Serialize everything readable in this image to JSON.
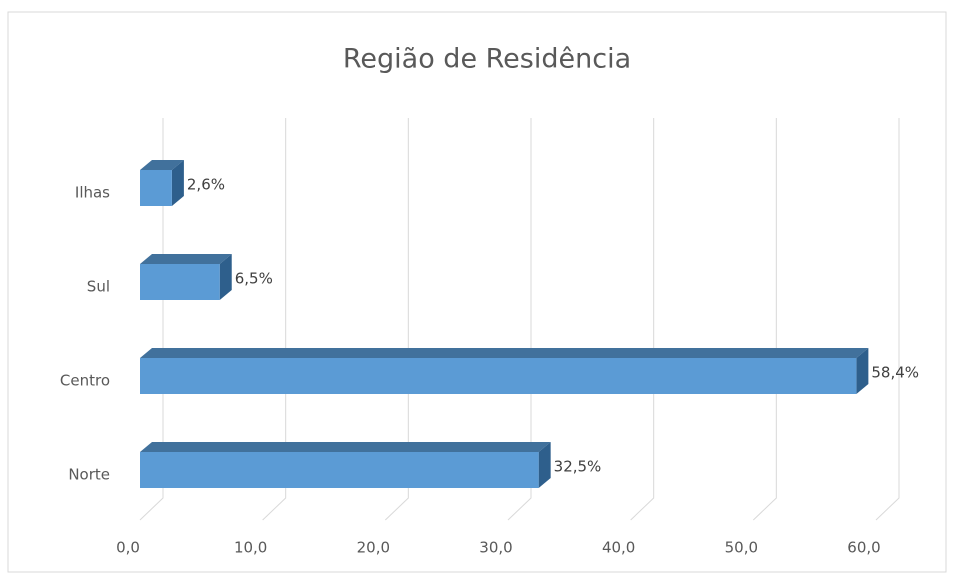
{
  "chart_data": {
    "type": "bar3d-horizontal",
    "title": "Região de Residência",
    "categories": [
      "Ilhas",
      "Sul",
      "Centro",
      "Norte"
    ],
    "values": [
      2.6,
      6.5,
      58.4,
      32.5
    ],
    "value_labels": [
      "2,6%",
      "6,5%",
      "58,4%",
      "32,5%"
    ],
    "color": "#5b9bd5",
    "xlim": [
      0,
      60
    ],
    "xticks": [
      {
        "value": 0,
        "label": "0,0"
      },
      {
        "value": 10,
        "label": "10,0"
      },
      {
        "value": 20,
        "label": "20,0"
      },
      {
        "value": 30,
        "label": "30,0"
      },
      {
        "value": 40,
        "label": "40,0"
      },
      {
        "value": 50,
        "label": "50,0"
      },
      {
        "value": 60,
        "label": "60,0"
      }
    ],
    "grid": true
  }
}
